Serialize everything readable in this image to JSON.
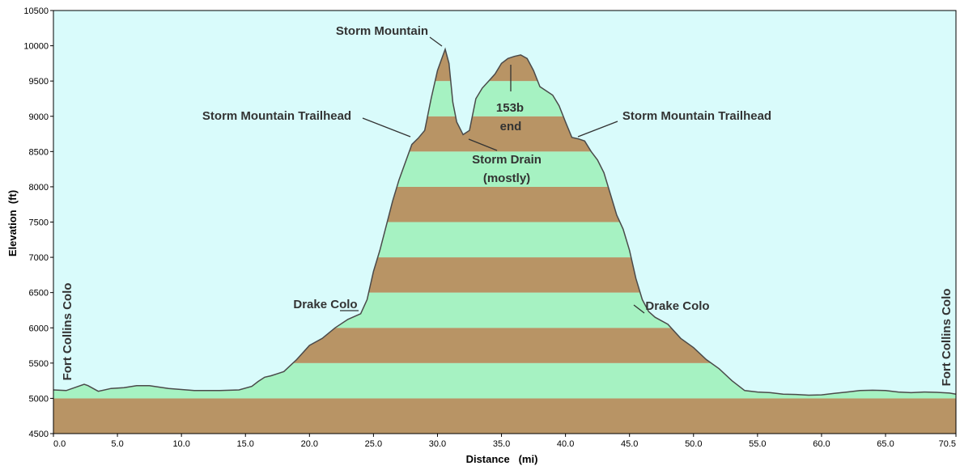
{
  "chart_data": {
    "type": "area",
    "title": "",
    "xlabel": "Distance   (mi)",
    "ylabel": "Elevation  (ft)",
    "xlim": [
      0,
      70.5
    ],
    "ylim": [
      4500,
      10500
    ],
    "x_ticks": [
      "0.0",
      "5.0",
      "10.0",
      "15.0",
      "20.0",
      "25.0",
      "30.0",
      "35.0",
      "40.0",
      "45.0",
      "50.0",
      "55.0",
      "60.0",
      "65.0",
      "70.5"
    ],
    "y_ticks": [
      "4500",
      "5000",
      "5500",
      "6000",
      "6500",
      "7000",
      "7500",
      "8000",
      "8500",
      "9000",
      "9500",
      "10000",
      "10500"
    ],
    "grid": false,
    "background_color": "#d9fbfb",
    "band_colors": [
      "#b89465",
      "#a6f2c2"
    ],
    "band_interval_ft": 500,
    "series": [
      {
        "x": [
          0,
          1,
          2.4,
          2.7,
          3.5,
          4.5,
          5.5,
          6.5,
          7.5,
          9,
          11,
          13,
          14.5,
          15.5,
          16,
          16.5,
          17,
          17.5,
          18,
          19,
          20,
          21,
          22,
          23,
          24,
          24.5,
          25,
          25.5,
          26,
          26.5,
          27,
          27.5,
          28,
          28.5,
          29,
          29.5,
          30,
          30.3,
          30.6,
          30.9,
          31.2,
          31.5,
          32,
          32.5,
          33,
          33.5,
          34,
          34.5,
          35,
          35.5,
          36,
          36.5,
          37,
          37.5,
          38,
          38.5,
          39,
          39.5,
          40,
          40.5,
          41,
          41.5,
          42,
          42.5,
          43,
          43.5,
          44,
          44.5,
          45,
          45.5,
          46,
          46.5,
          47,
          48,
          49,
          50,
          51,
          52,
          53,
          54,
          55,
          56,
          57,
          58,
          59,
          60,
          61,
          62,
          63,
          64,
          65,
          66,
          67,
          68,
          69,
          70,
          70.5
        ],
        "y": [
          5120,
          5110,
          5200,
          5180,
          5100,
          5140,
          5150,
          5180,
          5180,
          5140,
          5110,
          5110,
          5120,
          5170,
          5240,
          5300,
          5320,
          5350,
          5380,
          5550,
          5750,
          5850,
          6000,
          6120,
          6200,
          6400,
          6800,
          7100,
          7450,
          7800,
          8100,
          8350,
          8600,
          8690,
          8800,
          9250,
          9650,
          9800,
          9950,
          9750,
          9200,
          8920,
          8740,
          8800,
          9250,
          9400,
          9500,
          9600,
          9750,
          9820,
          9850,
          9870,
          9820,
          9650,
          9420,
          9360,
          9300,
          9150,
          8920,
          8700,
          8680,
          8650,
          8500,
          8380,
          8200,
          7900,
          7600,
          7400,
          7100,
          6700,
          6400,
          6230,
          6150,
          6050,
          5850,
          5720,
          5550,
          5420,
          5250,
          5110,
          5090,
          5080,
          5060,
          5055,
          5045,
          5050,
          5070,
          5090,
          5110,
          5115,
          5110,
          5090,
          5080,
          5090,
          5085,
          5075,
          5060
        ]
      }
    ],
    "annotations": [
      {
        "text": "Storm Mountain"
      },
      {
        "text": "153b"
      },
      {
        "text": "end"
      },
      {
        "text": "Storm Mountain Trailhead"
      },
      {
        "text": "Storm Mountain Trailhead"
      },
      {
        "text": "Storm Drain"
      },
      {
        "text": "(mostly)"
      },
      {
        "text": "Drake Colo"
      },
      {
        "text": "Drake Colo"
      },
      {
        "text": "Fort Collins Colo"
      },
      {
        "text": "Fort Collins Colo"
      }
    ]
  }
}
